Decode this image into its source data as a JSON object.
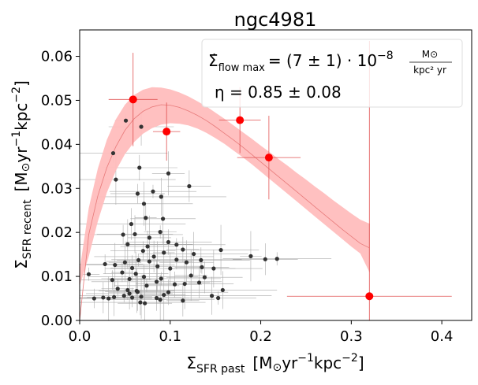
{
  "chart_data": {
    "type": "scatter",
    "title": "ngc4981",
    "xlabel": "Σ",
    "xlabel_sub": "SFR past",
    "xlabel_unit_a": "[M",
    "xlabel_unit_sun": "⊙",
    "xlabel_unit_b": "yr",
    "xlabel_unit_sup1": "−1",
    "xlabel_unit_c": "kpc",
    "xlabel_unit_sup2": "−2",
    "xlabel_unit_close": "]",
    "ylabel": "Σ",
    "ylabel_sub": "SFR recent",
    "ylabel_unit_a": "[M",
    "ylabel_unit_sun": "⊙",
    "ylabel_unit_b": "yr",
    "ylabel_unit_sup1": "−1",
    "ylabel_unit_c": "kpc",
    "ylabel_unit_sup2": "−2",
    "ylabel_unit_close": "]",
    "xlim": [
      0.0,
      0.433
    ],
    "ylim": [
      0.0,
      0.066
    ],
    "xticks": [
      0.0,
      0.1,
      0.2,
      0.3,
      0.4
    ],
    "xtick_labels": [
      "0.0",
      "0.1",
      "0.2",
      "0.3",
      "0.4"
    ],
    "yticks": [
      0.0,
      0.01,
      0.02,
      0.03,
      0.04,
      0.05,
      0.06
    ],
    "ytick_labels": [
      "0.00",
      "0.01",
      "0.02",
      "0.03",
      "0.04",
      "0.05",
      "0.06"
    ],
    "legend": {
      "line1_symbol": "Σ̇",
      "line1_sub": "flow max",
      "line1_eq": "= (7 ± 1) · 10",
      "line1_exp": "−8",
      "line1_frac_num": "M⊙",
      "line1_frac_den": "kpc² yr",
      "line2": "η = 0.85 ± 0.08",
      "placement": "top-right"
    },
    "fit_curve": {
      "x": [
        0.0,
        0.01,
        0.02,
        0.03,
        0.04,
        0.05,
        0.06,
        0.07,
        0.08,
        0.09,
        0.1,
        0.11,
        0.12,
        0.13,
        0.14,
        0.15,
        0.16,
        0.17,
        0.18,
        0.19,
        0.2,
        0.21,
        0.22,
        0.23,
        0.24,
        0.25,
        0.26,
        0.27,
        0.28,
        0.29,
        0.3,
        0.31,
        0.32
      ],
      "y": [
        0.0,
        0.0195,
        0.0283,
        0.0347,
        0.0395,
        0.0432,
        0.0458,
        0.0475,
        0.0485,
        0.049,
        0.0489,
        0.0484,
        0.0476,
        0.0466,
        0.0454,
        0.044,
        0.0425,
        0.041,
        0.0394,
        0.0377,
        0.036,
        0.0343,
        0.0326,
        0.0309,
        0.0292,
        0.0275,
        0.0258,
        0.0241,
        0.0224,
        0.0207,
        0.0191,
        0.0175,
        0.0165
      ],
      "band_upper": [
        0.0115,
        0.0255,
        0.0345,
        0.041,
        0.0457,
        0.049,
        0.0512,
        0.0524,
        0.053,
        0.0529,
        0.0525,
        0.0518,
        0.0509,
        0.0498,
        0.0486,
        0.0472,
        0.0458,
        0.0443,
        0.0428,
        0.0413,
        0.0397,
        0.0382,
        0.0366,
        0.0351,
        0.0335,
        0.032,
        0.0304,
        0.0289,
        0.0273,
        0.0258,
        0.0243,
        0.0229,
        0.022
      ],
      "band_lower": [
        0.0078,
        0.0145,
        0.0225,
        0.029,
        0.034,
        0.0378,
        0.0405,
        0.0424,
        0.0437,
        0.0445,
        0.0448,
        0.0447,
        0.0443,
        0.0436,
        0.0426,
        0.0414,
        0.0401,
        0.0386,
        0.0371,
        0.0355,
        0.0338,
        0.0321,
        0.0304,
        0.0287,
        0.027,
        0.0253,
        0.0236,
        0.0219,
        0.0202,
        0.0185,
        0.0168,
        0.0152,
        0.011
      ],
      "color": "#e87a7a",
      "band_color": "#ffbdbd"
    },
    "binned_points": {
      "color": "#ff0000",
      "points": [
        {
          "x": 0.059,
          "y": 0.0502,
          "xerr": 0.027,
          "yerr": 0.0106
        },
        {
          "x": 0.096,
          "y": 0.0429,
          "xerr": 0.015,
          "yerr": 0.0066
        },
        {
          "x": 0.177,
          "y": 0.0455,
          "xerr": 0.023,
          "yerr": 0.0075
        },
        {
          "x": 0.209,
          "y": 0.037,
          "xerr": 0.035,
          "yerr": 0.0095
        },
        {
          "x": 0.32,
          "y": 0.0055,
          "xerr": 0.091,
          "yerr": 0.058
        }
      ]
    },
    "raw_points": {
      "color": "#333333",
      "errorbar_color": "#aaaaaa",
      "points": [
        {
          "x": 0.051,
          "y": 0.0454
        },
        {
          "x": 0.068,
          "y": 0.044
        },
        {
          "x": 0.037,
          "y": 0.038
        },
        {
          "x": 0.098,
          "y": 0.0334
        },
        {
          "x": 0.066,
          "y": 0.0347
        },
        {
          "x": 0.04,
          "y": 0.032
        },
        {
          "x": 0.121,
          "y": 0.0305
        },
        {
          "x": 0.081,
          "y": 0.0293
        },
        {
          "x": 0.09,
          "y": 0.0281
        },
        {
          "x": 0.064,
          "y": 0.0288
        },
        {
          "x": 0.071,
          "y": 0.0265
        },
        {
          "x": 0.073,
          "y": 0.0233
        },
        {
          "x": 0.092,
          "y": 0.0231
        },
        {
          "x": 0.057,
          "y": 0.0219
        },
        {
          "x": 0.089,
          "y": 0.0201
        },
        {
          "x": 0.061,
          "y": 0.0196
        },
        {
          "x": 0.048,
          "y": 0.0195
        },
        {
          "x": 0.077,
          "y": 0.0188
        },
        {
          "x": 0.098,
          "y": 0.0178
        },
        {
          "x": 0.053,
          "y": 0.0173
        },
        {
          "x": 0.075,
          "y": 0.0168
        },
        {
          "x": 0.107,
          "y": 0.0172
        },
        {
          "x": 0.093,
          "y": 0.0154
        },
        {
          "x": 0.07,
          "y": 0.0158
        },
        {
          "x": 0.126,
          "y": 0.0151
        },
        {
          "x": 0.114,
          "y": 0.0161
        },
        {
          "x": 0.156,
          "y": 0.016
        },
        {
          "x": 0.082,
          "y": 0.0145
        },
        {
          "x": 0.065,
          "y": 0.0137
        },
        {
          "x": 0.077,
          "y": 0.0134
        },
        {
          "x": 0.107,
          "y": 0.0138
        },
        {
          "x": 0.118,
          "y": 0.0132
        },
        {
          "x": 0.134,
          "y": 0.0137
        },
        {
          "x": 0.189,
          "y": 0.0146
        },
        {
          "x": 0.205,
          "y": 0.0139
        },
        {
          "x": 0.218,
          "y": 0.014
        },
        {
          "x": 0.05,
          "y": 0.0132
        },
        {
          "x": 0.028,
          "y": 0.0128
        },
        {
          "x": 0.039,
          "y": 0.0126
        },
        {
          "x": 0.058,
          "y": 0.0119
        },
        {
          "x": 0.086,
          "y": 0.0123
        },
        {
          "x": 0.1,
          "y": 0.0118
        },
        {
          "x": 0.135,
          "y": 0.0121
        },
        {
          "x": 0.148,
          "y": 0.0118
        },
        {
          "x": 0.047,
          "y": 0.0109
        },
        {
          "x": 0.062,
          "y": 0.0106
        },
        {
          "x": 0.071,
          "y": 0.0099
        },
        {
          "x": 0.123,
          "y": 0.0102
        },
        {
          "x": 0.138,
          "y": 0.0098
        },
        {
          "x": 0.09,
          "y": 0.0095
        },
        {
          "x": 0.055,
          "y": 0.0094
        },
        {
          "x": 0.036,
          "y": 0.0092
        },
        {
          "x": 0.085,
          "y": 0.0088
        },
        {
          "x": 0.105,
          "y": 0.0082
        },
        {
          "x": 0.116,
          "y": 0.0083
        },
        {
          "x": 0.132,
          "y": 0.0086
        },
        {
          "x": 0.074,
          "y": 0.0079
        },
        {
          "x": 0.158,
          "y": 0.0069
        },
        {
          "x": 0.042,
          "y": 0.0072
        },
        {
          "x": 0.063,
          "y": 0.0067
        },
        {
          "x": 0.098,
          "y": 0.0064
        },
        {
          "x": 0.093,
          "y": 0.0058
        },
        {
          "x": 0.055,
          "y": 0.0061
        },
        {
          "x": 0.049,
          "y": 0.0056
        },
        {
          "x": 0.038,
          "y": 0.0053
        },
        {
          "x": 0.058,
          "y": 0.0052
        },
        {
          "x": 0.068,
          "y": 0.0054
        },
        {
          "x": 0.085,
          "y": 0.0051
        },
        {
          "x": 0.089,
          "y": 0.0047
        },
        {
          "x": 0.114,
          "y": 0.0045
        },
        {
          "x": 0.153,
          "y": 0.0051
        },
        {
          "x": 0.146,
          "y": 0.0056
        },
        {
          "x": 0.016,
          "y": 0.005
        },
        {
          "x": 0.032,
          "y": 0.005
        },
        {
          "x": 0.067,
          "y": 0.0041
        },
        {
          "x": 0.072,
          "y": 0.0039
        },
        {
          "x": 0.026,
          "y": 0.0052
        },
        {
          "x": 0.01,
          "y": 0.0105
        },
        {
          "x": 0.064,
          "y": 0.0065
        },
        {
          "x": 0.053,
          "y": 0.0069
        }
      ]
    }
  }
}
